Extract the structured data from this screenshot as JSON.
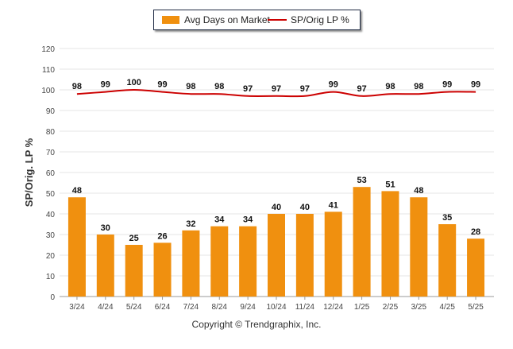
{
  "chart_data": {
    "type": "bar",
    "categories": [
      "3/24",
      "4/24",
      "5/24",
      "6/24",
      "7/24",
      "8/24",
      "9/24",
      "10/24",
      "11/24",
      "12/24",
      "1/25",
      "2/25",
      "3/25",
      "4/25",
      "5/25"
    ],
    "series": [
      {
        "name": "Avg Days on Market",
        "type": "bar",
        "color": "#f0900f",
        "values": [
          48,
          30,
          25,
          26,
          32,
          34,
          34,
          40,
          40,
          41,
          53,
          51,
          48,
          35,
          28
        ]
      },
      {
        "name": "SP/Orig LP %",
        "type": "line",
        "color": "#cc0000",
        "values": [
          98,
          99,
          100,
          99,
          98,
          98,
          97,
          97,
          97,
          99,
          97,
          98,
          98,
          99,
          99
        ]
      }
    ],
    "ylabel": "SP/Orig. LP %",
    "ylim": [
      0,
      120
    ],
    "yticks": [
      "0",
      "10",
      "20",
      "30",
      "40",
      "50",
      "60",
      "70",
      "80",
      "90",
      "100",
      "110",
      "120"
    ],
    "grid": true,
    "legend": "top-center"
  },
  "legend": {
    "bar_label": "Avg Days on Market",
    "line_label": "SP/Orig LP %"
  },
  "footer": {
    "copyright": "Copyright © Trendgraphix, Inc."
  }
}
